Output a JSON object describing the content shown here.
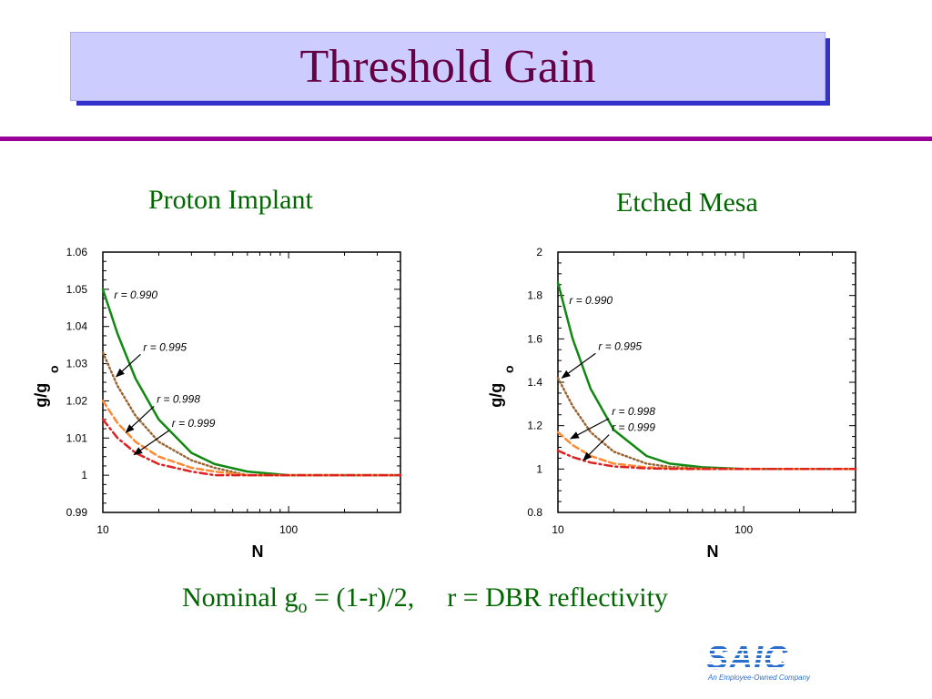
{
  "slide": {
    "title": "Threshold Gain",
    "footer": {
      "prefix": "Nominal g",
      "subscript": "o",
      "formula": " = (1-r)/2,",
      "definition": "r = DBR reflectivity"
    },
    "logo": {
      "text": "SAIC",
      "tagline": "An Employee-Owned Company"
    },
    "colors": {
      "title_box": "#ccccff",
      "title_shadow": "#3333cc",
      "title_text": "#660044",
      "divider": "#990099",
      "subtitle": "#006600"
    }
  },
  "chart_data": [
    {
      "type": "line",
      "title": "Proton Implant",
      "xlabel": "N",
      "ylabel": "g/g",
      "ylabel_sub": "o",
      "xscale": "log",
      "xlim": [
        10,
        400
      ],
      "ylim": [
        0.99,
        1.06
      ],
      "xticks": [
        10,
        100
      ],
      "xtick_labels": [
        "10",
        "100"
      ],
      "yticks": [
        0.99,
        1,
        1.01,
        1.02,
        1.03,
        1.04,
        1.05,
        1.06
      ],
      "ytick_labels": [
        "0.99",
        "1",
        "1.01",
        "1.02",
        "1.03",
        "1.04",
        "1.05",
        "1.06"
      ],
      "series": [
        {
          "name": "r = 0.990",
          "color": "#118811",
          "dash": "solid",
          "x": [
            10,
            12,
            15,
            20,
            30,
            40,
            60,
            100,
            200,
            400
          ],
          "y": [
            1.05,
            1.038,
            1.026,
            1.015,
            1.006,
            1.003,
            1.001,
            1.0,
            1.0,
            1.0
          ]
        },
        {
          "name": "r = 0.995",
          "color": "#996633",
          "dash": "dotted",
          "x": [
            10,
            12,
            15,
            20,
            30,
            40,
            60,
            100,
            200,
            400
          ],
          "y": [
            1.033,
            1.024,
            1.016,
            1.009,
            1.004,
            1.002,
            1.0,
            1.0,
            1.0,
            1.0
          ]
        },
        {
          "name": "r = 0.998",
          "color": "#ff8833",
          "dash": "dashed",
          "x": [
            10,
            12,
            15,
            20,
            30,
            40,
            60,
            100,
            200,
            400
          ],
          "y": [
            1.02,
            1.014,
            1.009,
            1.005,
            1.002,
            1.001,
            1.0,
            1.0,
            1.0,
            1.0
          ]
        },
        {
          "name": "r = 0.999",
          "color": "#dd2222",
          "dash": "dashdot",
          "x": [
            10,
            12,
            15,
            20,
            30,
            40,
            60,
            100,
            200,
            400
          ],
          "y": [
            1.015,
            1.01,
            1.006,
            1.003,
            1.001,
            1.0,
            1.0,
            1.0,
            1.0,
            1.0
          ]
        }
      ],
      "annotations": [
        {
          "text": "r = 0.990",
          "x": 11.5,
          "y": 1.0475
        },
        {
          "text": "r = 0.995",
          "x": 16.5,
          "y": 1.0335,
          "arrow_to": [
            11.8,
            1.0265
          ]
        },
        {
          "text": "r = 0.998",
          "x": 19.5,
          "y": 1.0195,
          "arrow_to": [
            13.3,
            1.0115
          ]
        },
        {
          "text": "r = 0.999",
          "x": 23.5,
          "y": 1.013,
          "arrow_to": [
            14.7,
            1.0055
          ]
        }
      ]
    },
    {
      "type": "line",
      "title": "Etched Mesa",
      "xlabel": "N",
      "ylabel": "g/g",
      "ylabel_sub": "o",
      "xscale": "log",
      "xlim": [
        10,
        400
      ],
      "ylim": [
        0.8,
        2
      ],
      "xticks": [
        10,
        100
      ],
      "xtick_labels": [
        "10",
        "100"
      ],
      "yticks": [
        0.8,
        1,
        1.2,
        1.4,
        1.6,
        1.8,
        2
      ],
      "ytick_labels": [
        "0.8",
        "1",
        "1.2",
        "1.4",
        "1.6",
        "1.8",
        "2"
      ],
      "series": [
        {
          "name": "r = 0.990",
          "color": "#118811",
          "dash": "solid",
          "x": [
            10,
            12,
            15,
            20,
            30,
            40,
            60,
            100,
            200,
            400
          ],
          "y": [
            1.86,
            1.6,
            1.37,
            1.18,
            1.06,
            1.025,
            1.008,
            1.0,
            1.0,
            1.0
          ]
        },
        {
          "name": "r = 0.995",
          "color": "#996633",
          "dash": "dotted",
          "x": [
            10,
            12,
            15,
            20,
            30,
            40,
            60,
            100,
            200,
            400
          ],
          "y": [
            1.42,
            1.29,
            1.17,
            1.08,
            1.025,
            1.01,
            1.003,
            1.0,
            1.0,
            1.0
          ]
        },
        {
          "name": "r = 0.998",
          "color": "#ff8833",
          "dash": "dashed",
          "x": [
            10,
            12,
            15,
            20,
            30,
            40,
            60,
            100,
            200,
            400
          ],
          "y": [
            1.17,
            1.11,
            1.06,
            1.025,
            1.008,
            1.003,
            1.0,
            1.0,
            1.0,
            1.0
          ]
        },
        {
          "name": "r = 0.999",
          "color": "#dd2222",
          "dash": "dashdot",
          "x": [
            10,
            12,
            15,
            20,
            30,
            40,
            60,
            100,
            200,
            400
          ],
          "y": [
            1.085,
            1.055,
            1.03,
            1.012,
            1.003,
            1.001,
            1.0,
            1.0,
            1.0,
            1.0
          ]
        }
      ],
      "annotations": [
        {
          "text": "r = 0.990",
          "x": 11.5,
          "y": 1.76
        },
        {
          "text": "r = 0.995",
          "x": 16.5,
          "y": 1.55,
          "arrow_to": [
            10.5,
            1.42
          ]
        },
        {
          "text": "r = 0.998",
          "x": 19.5,
          "y": 1.25,
          "arrow_to": [
            11.7,
            1.14
          ]
        },
        {
          "text": "r = 0.999",
          "x": 19.5,
          "y": 1.175,
          "arrow_to": [
            13.7,
            1.04
          ]
        }
      ]
    }
  ]
}
